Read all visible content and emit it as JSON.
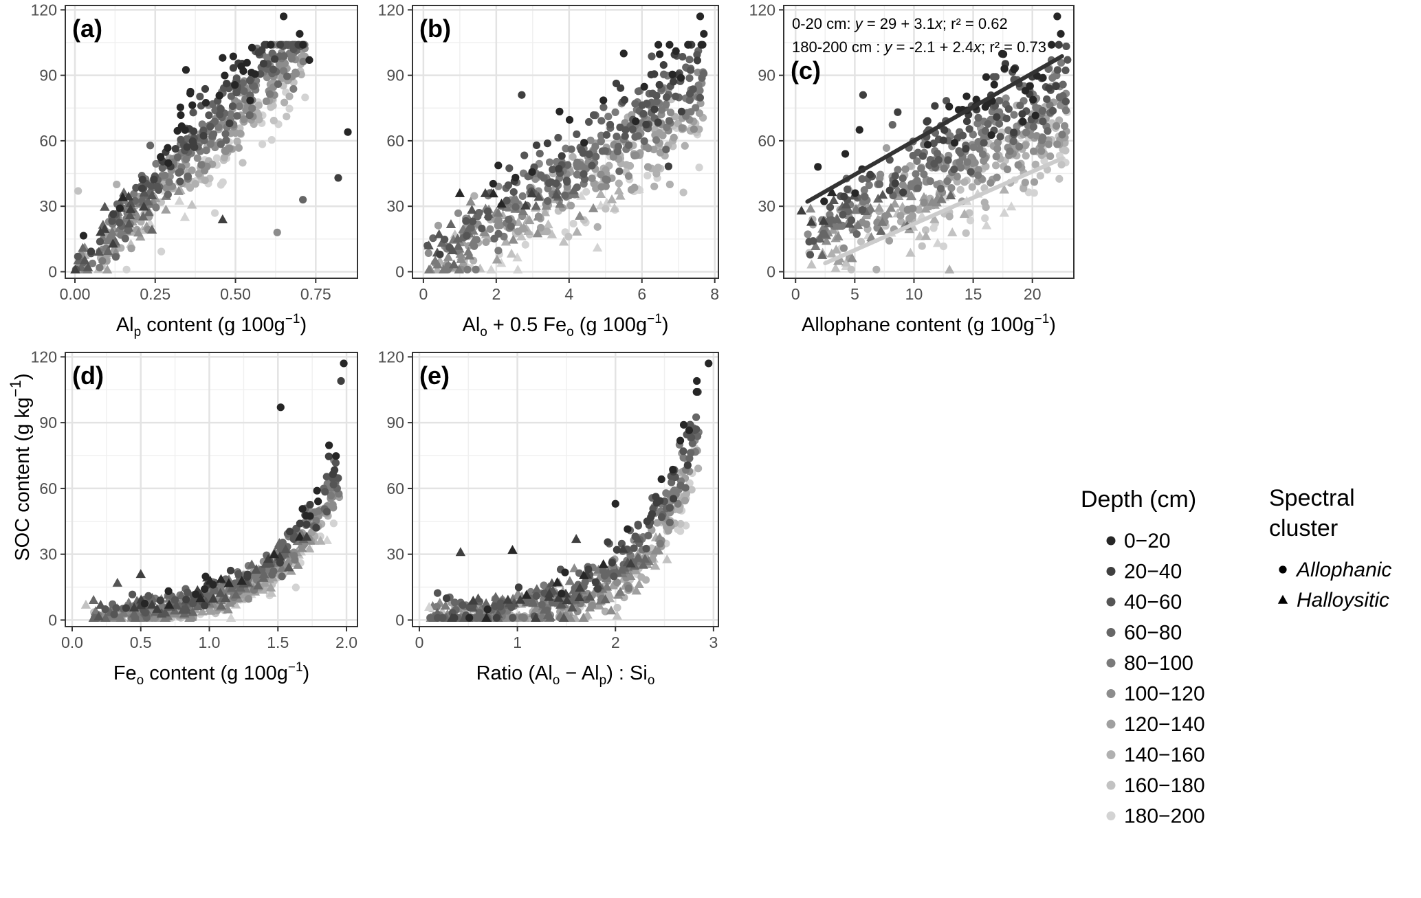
{
  "figure": {
    "y_axis_title": "SOC content (g kg⁻¹)",
    "y_axis_title_parts": {
      "base": "SOC content (g kg",
      "sup": "−1",
      "close": ")"
    }
  },
  "colors": {
    "depth": [
      "#262626",
      "#3f3f3f",
      "#555555",
      "#666666",
      "#7a7a7a",
      "#8c8c8c",
      "#9f9f9f",
      "#b0b0b0",
      "#c2c2c2",
      "#d3d3d3"
    ]
  },
  "legend": {
    "depth_title": "Depth (cm)",
    "depth_items": [
      "0−20",
      "20−40",
      "40−60",
      "60−80",
      "80−100",
      "100−120",
      "120−140",
      "140−160",
      "160−180",
      "180−200"
    ],
    "shape_title_line1": "Spectral",
    "shape_title_line2": "cluster",
    "shape_items": [
      {
        "label": "Allophanic",
        "shape": "circle"
      },
      {
        "label": "Halloysitic",
        "shape": "triangle"
      }
    ]
  },
  "chart_data": [
    {
      "id": "a",
      "type": "scatter",
      "tag": "(a)",
      "xlabel": "Alp content (g 100g−1)",
      "xlabel_parts": {
        "pre": "Al",
        "sub": "p",
        "post": " content (g 100g",
        "sup": "−1",
        "end": ")"
      },
      "ylabel": "SOC content (g kg−1)",
      "xlim": [
        -0.03,
        0.88
      ],
      "ylim": [
        -3,
        122
      ],
      "xticks": [
        0,
        0.25,
        0.5,
        0.75
      ],
      "xtick_labels": [
        "0.00",
        "0.25",
        "0.50",
        "0.75"
      ],
      "yticks": [
        0,
        30,
        60,
        90,
        120
      ],
      "ytick_labels": [
        "0",
        "30",
        "60",
        "90",
        "120"
      ],
      "cloud": {
        "x_min": 0.0,
        "x_max": 0.72,
        "model": "linear",
        "a": 0,
        "b": 148,
        "spread": 10
      },
      "outliers": [
        {
          "x": 0.65,
          "y": 117,
          "depth": 0,
          "shape": "circle"
        },
        {
          "x": 0.7,
          "y": 109,
          "depth": 0,
          "shape": "circle"
        },
        {
          "x": 0.73,
          "y": 97,
          "depth": 0,
          "shape": "circle"
        },
        {
          "x": 0.85,
          "y": 64,
          "depth": 0,
          "shape": "circle"
        },
        {
          "x": 0.82,
          "y": 43,
          "depth": 1,
          "shape": "circle"
        },
        {
          "x": 0.71,
          "y": 33,
          "depth": 3,
          "shape": "circle"
        },
        {
          "x": 0.63,
          "y": 18,
          "depth": 5,
          "shape": "circle"
        },
        {
          "x": 0.46,
          "y": 98,
          "depth": 0,
          "shape": "circle"
        },
        {
          "x": 0.46,
          "y": 24,
          "depth": 1,
          "shape": "triangle"
        },
        {
          "x": 0.01,
          "y": 37,
          "depth": 8,
          "shape": "circle"
        },
        {
          "x": 0.13,
          "y": 40,
          "depth": 7,
          "shape": "circle"
        }
      ]
    },
    {
      "id": "b",
      "type": "scatter",
      "tag": "(b)",
      "xlabel": "Alo + 0.5 Feo (g 100g−1)",
      "xlabel_parts": {
        "pre": "Al",
        "sub": "o",
        "mid": " + 0.5 Fe",
        "sub2": "o",
        "post": " (g 100g",
        "sup": "−1",
        "end": ")"
      },
      "ylabel": "SOC content (g kg−1)",
      "xlim": [
        -0.3,
        8.1
      ],
      "ylim": [
        -3,
        122
      ],
      "xticks": [
        0,
        2,
        4,
        6,
        8
      ],
      "xtick_labels": [
        "0",
        "2",
        "4",
        "6",
        "8"
      ],
      "yticks": [
        0,
        30,
        60,
        90,
        120
      ],
      "ytick_labels": [
        "0",
        "30",
        "60",
        "90",
        "120"
      ],
      "cloud": {
        "x_min": 0.1,
        "x_max": 7.7,
        "model": "linear",
        "a": 2,
        "b": 10.5,
        "spread": 13
      },
      "outliers": [
        {
          "x": 7.6,
          "y": 117,
          "depth": 0,
          "shape": "circle"
        },
        {
          "x": 7.7,
          "y": 109,
          "depth": 0,
          "shape": "circle"
        },
        {
          "x": 2.7,
          "y": 81,
          "depth": 1,
          "shape": "circle"
        },
        {
          "x": 1.0,
          "y": 36,
          "depth": 0,
          "shape": "triangle"
        },
        {
          "x": 1.7,
          "y": 36,
          "depth": 1,
          "shape": "triangle"
        },
        {
          "x": 5.5,
          "y": 100,
          "depth": 0,
          "shape": "circle"
        }
      ]
    },
    {
      "id": "c",
      "type": "scatter",
      "tag": "(c)",
      "xlabel": "Allophane content (g 100g−1)",
      "xlabel_parts": {
        "pre": "Allophane content (g 100g",
        "sup": "−1",
        "end": ")"
      },
      "ylabel": "SOC content (g kg−1)",
      "xlim": [
        -1,
        23.5
      ],
      "ylim": [
        -3,
        122
      ],
      "xticks": [
        0,
        5,
        10,
        15,
        20
      ],
      "xtick_labels": [
        "0",
        "5",
        "10",
        "15",
        "20"
      ],
      "yticks": [
        0,
        30,
        60,
        90,
        120
      ],
      "ytick_labels": [
        "0",
        "30",
        "60",
        "90",
        "120"
      ],
      "cloud": {
        "x_min": 1.0,
        "x_max": 23.0,
        "model": "linear",
        "a": 11,
        "b": 2.9,
        "spread": 14
      },
      "annotations": [
        {
          "label": "0-20 cm: ",
          "eq_pre": "y",
          "eq_mid": " = 29 + 3.1",
          "eq_var": "x",
          "eq_post": "; r² = 0.62"
        },
        {
          "label": "180-200 cm : ",
          "eq_pre": "y",
          "eq_mid": " = -2.1 + 2.4",
          "eq_var": "x",
          "eq_post": "; r² = 0.73"
        }
      ],
      "fit_lines": [
        {
          "name": "0-20 cm",
          "depth": 0,
          "intercept": 29,
          "slope": 3.1,
          "x_range": [
            1.0,
            22.5
          ],
          "color": "#333333"
        },
        {
          "name": "180-200 cm",
          "depth": 9,
          "intercept": -2.1,
          "slope": 2.4,
          "x_range": [
            2.5,
            22.5
          ],
          "color": "#cccccc"
        }
      ],
      "outliers": [
        {
          "x": 22.1,
          "y": 117,
          "depth": 0,
          "shape": "circle"
        },
        {
          "x": 22.4,
          "y": 109,
          "depth": 0,
          "shape": "circle"
        },
        {
          "x": 5.7,
          "y": 81,
          "depth": 1,
          "shape": "circle"
        },
        {
          "x": 4.2,
          "y": 54,
          "depth": 0,
          "shape": "circle"
        },
        {
          "x": 5.4,
          "y": 65,
          "depth": 0,
          "shape": "circle"
        },
        {
          "x": 0.5,
          "y": 28,
          "depth": 1,
          "shape": "triangle"
        },
        {
          "x": 13.0,
          "y": 1,
          "depth": 7,
          "shape": "triangle"
        }
      ]
    },
    {
      "id": "d",
      "type": "scatter",
      "tag": "(d)",
      "xlabel": "Feo content (g 100g−1)",
      "xlabel_parts": {
        "pre": "Fe",
        "sub": "o",
        "post": " content (g 100g",
        "sup": "−1",
        "end": ")"
      },
      "ylabel": "SOC content (g kg−1)",
      "xlim": [
        -0.05,
        2.08
      ],
      "ylim": [
        -3,
        122
      ],
      "xticks": [
        0,
        0.5,
        1.0,
        1.5,
        2.0
      ],
      "xtick_labels": [
        "0.0",
        "0.5",
        "1.0",
        "1.5",
        "2.0"
      ],
      "yticks": [
        0,
        30,
        60,
        90,
        120
      ],
      "ytick_labels": [
        "0",
        "30",
        "60",
        "90",
        "120"
      ],
      "cloud": {
        "x_min": 0.15,
        "x_max": 1.95,
        "model": "exp",
        "a": 1.3,
        "b": 2.0,
        "spread": 6
      },
      "outliers": [
        {
          "x": 1.98,
          "y": 117,
          "depth": 0,
          "shape": "circle"
        },
        {
          "x": 1.96,
          "y": 109,
          "depth": 1,
          "shape": "circle"
        },
        {
          "x": 1.52,
          "y": 97,
          "depth": 0,
          "shape": "circle"
        },
        {
          "x": 0.1,
          "y": 7,
          "depth": 8,
          "shape": "triangle"
        },
        {
          "x": 0.33,
          "y": 17,
          "depth": 2,
          "shape": "triangle"
        },
        {
          "x": 0.5,
          "y": 21,
          "depth": 1,
          "shape": "triangle"
        },
        {
          "x": 1.66,
          "y": 38,
          "depth": 0,
          "shape": "triangle"
        },
        {
          "x": 1.71,
          "y": 38,
          "depth": 1,
          "shape": "triangle"
        }
      ]
    },
    {
      "id": "e",
      "type": "scatter",
      "tag": "(e)",
      "xlabel": "Ratio (Alo − Alp) : Sio",
      "xlabel_parts": {
        "pre": "Ratio (Al",
        "sub": "o",
        "mid": " − Al",
        "sub2": "p",
        "post": ") : Si",
        "sub3": "o"
      },
      "ylabel": "SOC content (g kg−1)",
      "xlim": [
        -0.07,
        3.05
      ],
      "ylim": [
        -3,
        122
      ],
      "xticks": [
        0,
        1,
        2,
        3
      ],
      "xtick_labels": [
        "0",
        "1",
        "2",
        "3"
      ],
      "yticks": [
        0,
        30,
        60,
        90,
        120
      ],
      "ytick_labels": [
        "0",
        "30",
        "60",
        "90",
        "120"
      ],
      "cloud": {
        "x_min": 0.1,
        "x_max": 2.85,
        "model": "exp",
        "a": 0.6,
        "b": 1.75,
        "spread": 9
      },
      "outliers": [
        {
          "x": 2.95,
          "y": 117,
          "depth": 0,
          "shape": "circle"
        },
        {
          "x": 2.83,
          "y": 109,
          "depth": 0,
          "shape": "circle"
        },
        {
          "x": 0.42,
          "y": 31,
          "depth": 1,
          "shape": "triangle"
        },
        {
          "x": 0.95,
          "y": 32,
          "depth": 0,
          "shape": "triangle"
        },
        {
          "x": 1.6,
          "y": 37,
          "depth": 1,
          "shape": "triangle"
        },
        {
          "x": 2.0,
          "y": 53,
          "depth": 0,
          "shape": "circle"
        },
        {
          "x": 0.1,
          "y": 6,
          "depth": 9,
          "shape": "triangle"
        }
      ]
    }
  ]
}
